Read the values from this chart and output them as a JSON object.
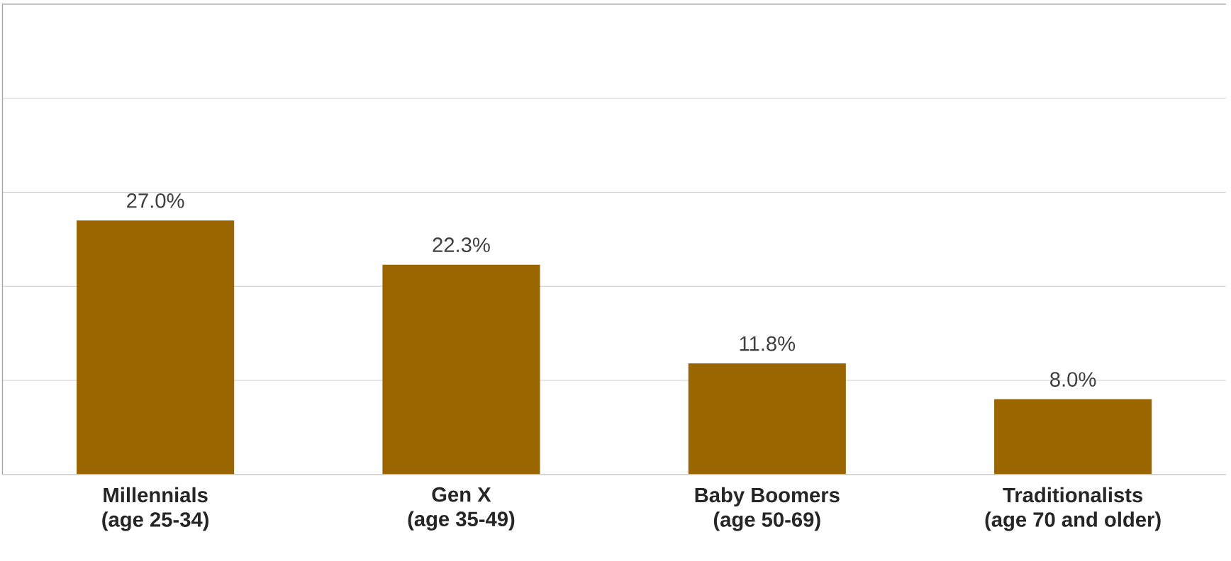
{
  "chart_data": {
    "type": "bar",
    "categories": [
      "Millennials\n(age 25-34)",
      "Gen X\n(age 35-49)",
      "Baby Boomers\n(age 50-69)",
      "Traditionalists\n(age 70 and older)"
    ],
    "values": [
      27.0,
      22.3,
      11.8,
      8.0
    ],
    "color": "#996600",
    "value_labels": [
      "27.0%",
      "22.3%",
      "11.8%",
      "8.0%"
    ],
    "ylim": [
      0,
      50
    ],
    "yticks": [
      {
        "value": 0,
        "label": null
      },
      {
        "value": 10,
        "label": null
      },
      {
        "value": 20,
        "label": null
      },
      {
        "value": 30,
        "label": null
      },
      {
        "value": 40,
        "label": null
      },
      {
        "value": 50,
        "label": null
      }
    ],
    "grid": "y",
    "tick_labels": "x"
  }
}
